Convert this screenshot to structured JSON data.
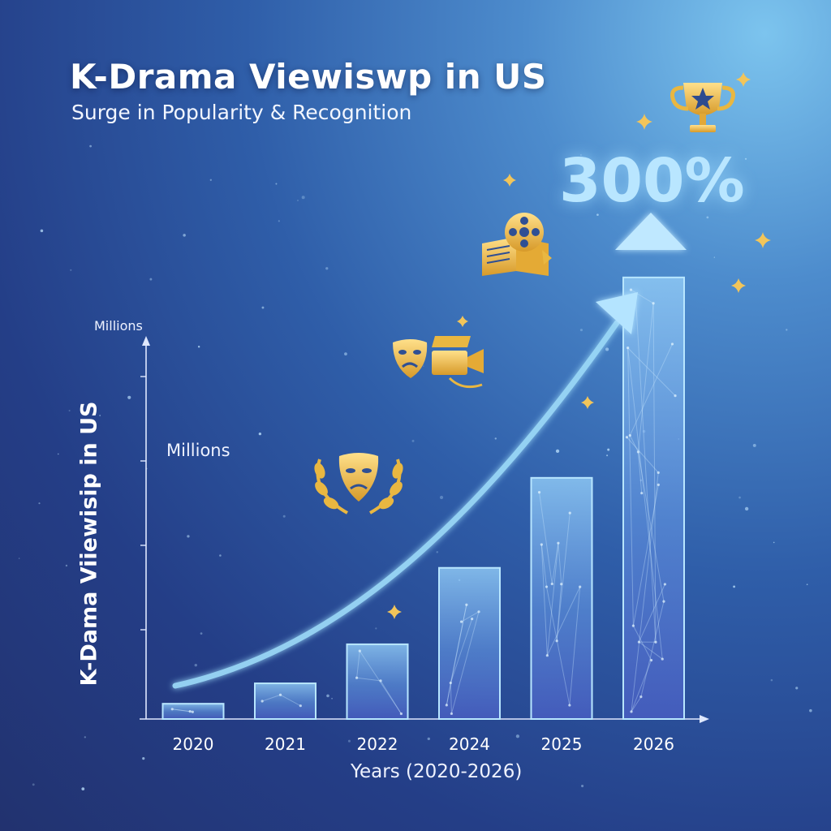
{
  "header": {
    "title": "K-Drama Viewiswp in US",
    "subtitle": "Surge in Popularity & Recognition"
  },
  "labels": {
    "axis_unit": "Millions",
    "inner_unit": "Millions",
    "y_axis_title": "K-Dama Viiewisip in US",
    "x_axis_title": "Years (2020-2026)",
    "growth_callout": "300%"
  },
  "icons": [
    "trophy-icon",
    "film-reel-book-icon",
    "drama-mask-camera-icon",
    "drama-mask-laurel-icon",
    "sparkle-icon"
  ],
  "colors": {
    "accent_gold": "#e9b741",
    "arrow": "#9ad8f7",
    "bar_fill": "#6fa8ea",
    "bar_edge": "#b8e6ff"
  },
  "chart_data": {
    "type": "bar",
    "categories": [
      "2020",
      "2021",
      "2022",
      "2024",
      "2025",
      "2026"
    ],
    "values": [
      0.9,
      2.1,
      4.4,
      8.9,
      14.2,
      26.0
    ],
    "title": "K-Drama Viewiswp in US",
    "subtitle": "Surge in Popularity & Recognition",
    "xlabel": "Years (2020-2026)",
    "ylabel": "K-Dama Viiewisip in US",
    "yunit": "Millions",
    "ylim": [
      0,
      28
    ],
    "grid": false,
    "legend": "none",
    "annotation": "300%"
  }
}
